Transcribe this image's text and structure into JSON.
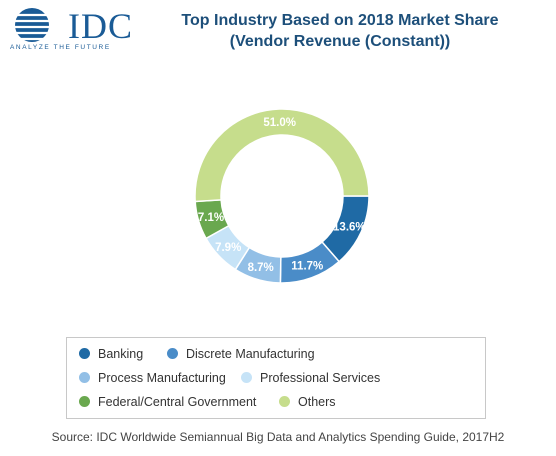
{
  "logo": {
    "word": "IDC",
    "tagline": "ANALYZE THE FUTURE"
  },
  "title_line1": "Top Industry Based on 2018 Market Share",
  "title_line2": "(Vendor Revenue (Constant))",
  "source": "Source: IDC Worldwide Semiannual Big Data and Analytics Spending Guide, 2017H2",
  "chart_data": {
    "type": "pie",
    "title": "Top Industry Based on 2018 Market Share (Vendor Revenue (Constant))",
    "legend_placement": "bottom",
    "categories": [
      "Banking",
      "Discrete Manufacturing",
      "Process Manufacturing",
      "Professional Services",
      "Federal/Central Government",
      "Others"
    ],
    "values": [
      13.6,
      11.7,
      8.7,
      7.9,
      7.1,
      51.0
    ],
    "labels": [
      "13.6%",
      "11.7%",
      "8.7%",
      "7.9%",
      "7.1%",
      "51.0%"
    ],
    "colors": [
      "#1f6aa5",
      "#4a8cc8",
      "#92bfe6",
      "#c6e3f7",
      "#6aa84f",
      "#c6dd8c"
    ]
  }
}
